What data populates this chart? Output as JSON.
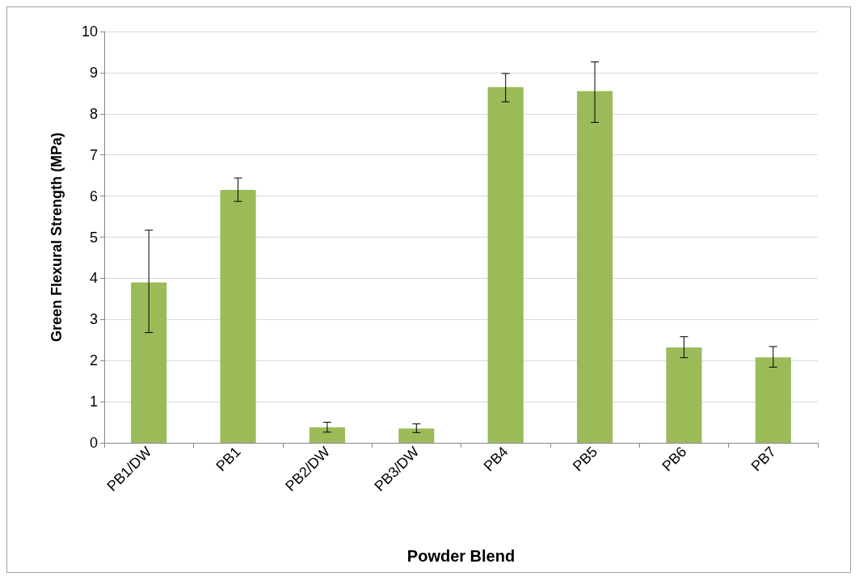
{
  "chart_data": {
    "type": "bar",
    "xlabel": "Powder Blend",
    "ylabel": "Green Flexural Strength (MPa)",
    "categories": [
      "PB1/DW",
      "PB1",
      "PB2/DW",
      "PB3/DW",
      "PB4",
      "PB5",
      "PB6",
      "PB7"
    ],
    "values": [
      3.9,
      6.15,
      0.38,
      0.35,
      8.65,
      8.55,
      2.32,
      2.08
    ],
    "errors": [
      [
        2.68,
        5.17
      ],
      [
        5.87,
        6.44
      ],
      [
        0.26,
        0.5
      ],
      [
        0.25,
        0.46
      ],
      [
        8.29,
        8.98
      ],
      [
        7.79,
        9.26
      ],
      [
        2.07,
        2.58
      ],
      [
        1.84,
        2.34
      ]
    ],
    "color": "#9bbb59",
    "ylim": [
      0,
      10
    ],
    "yticks": [
      0,
      1,
      2,
      3,
      4,
      5,
      6,
      7,
      8,
      9,
      10
    ],
    "grid": "y"
  }
}
